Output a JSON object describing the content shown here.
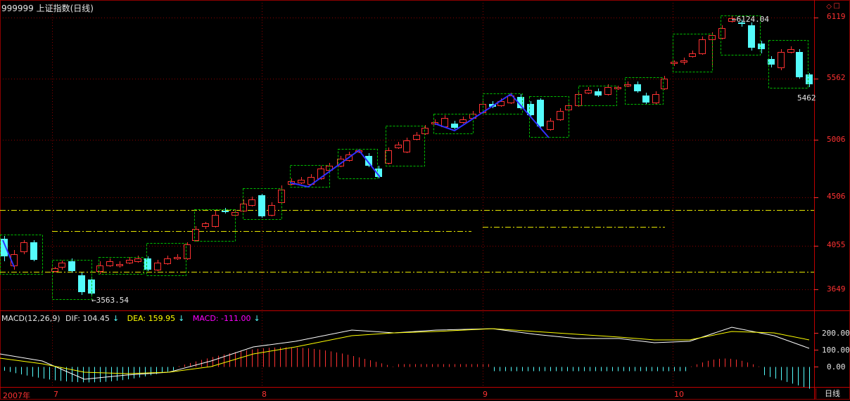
{
  "header": {
    "title": "999999 上证指数(日线)"
  },
  "macd": {
    "label": "MACD(12,26,9)",
    "dif_label": "DIF: 104.45",
    "dea_label": "DEA: 159.95",
    "macd_label": "MACD: -111.00",
    "down_arrow": "↓",
    "colors": {
      "dif": "#ffffff",
      "dea": "#ffff00",
      "macd": "#ff00ff"
    },
    "axis_ticks": [
      "200.00",
      "100.00",
      "0.00"
    ]
  },
  "price_axis": {
    "ticks": [
      "6119",
      "5562",
      "5006",
      "4506",
      "4055",
      "3649"
    ]
  },
  "annotations": {
    "high": "6124.04",
    "low": "3563.54",
    "last": "5462"
  },
  "time_axis": {
    "labels": [
      "2007年",
      "7",
      "8",
      "9",
      "10"
    ]
  },
  "period_button": "日线",
  "colors": {
    "up": "#ff3232",
    "down": "#54fcfc",
    "grid": "#8b0000",
    "box": "#00c000",
    "wave": "#3030ff",
    "hline": "#e8e800"
  }
}
